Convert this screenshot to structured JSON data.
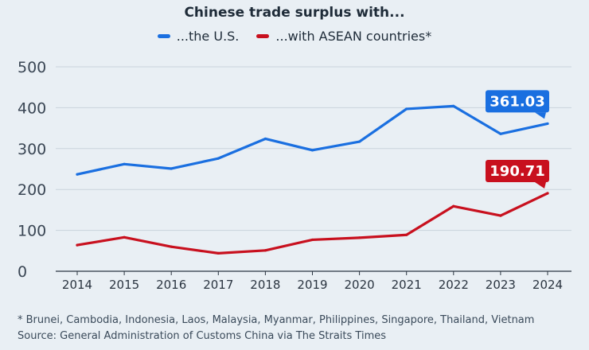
{
  "chart_data": {
    "type": "line",
    "title": "Chinese trade surplus with...",
    "x": [
      2014,
      2015,
      2016,
      2017,
      2018,
      2019,
      2020,
      2021,
      2022,
      2023,
      2024
    ],
    "series": [
      {
        "name": "...the U.S.",
        "color": "#1a6fe0",
        "values": [
          237,
          262,
          251,
          276,
          324,
          296,
          317,
          397,
          404,
          336,
          361.03
        ],
        "end_label": "361.03"
      },
      {
        "name": "...with ASEAN countries*",
        "color": "#c8101e",
        "values": [
          64,
          83,
          60,
          44,
          51,
          77,
          82,
          89,
          159,
          136,
          190.71
        ],
        "end_label": "190.71"
      }
    ],
    "ylim": [
      0,
      500
    ],
    "yticks": [
      0,
      100,
      200,
      300,
      400,
      500
    ],
    "grid": true,
    "legend_position": "top-center",
    "footnote": "* Brunei, Cambodia, Indonesia, Laos, Malaysia, Myanmar, Philippines, Singapore, Thailand, Vietnam",
    "source": "Source: General Administration of Customs China via The Straits Times"
  }
}
